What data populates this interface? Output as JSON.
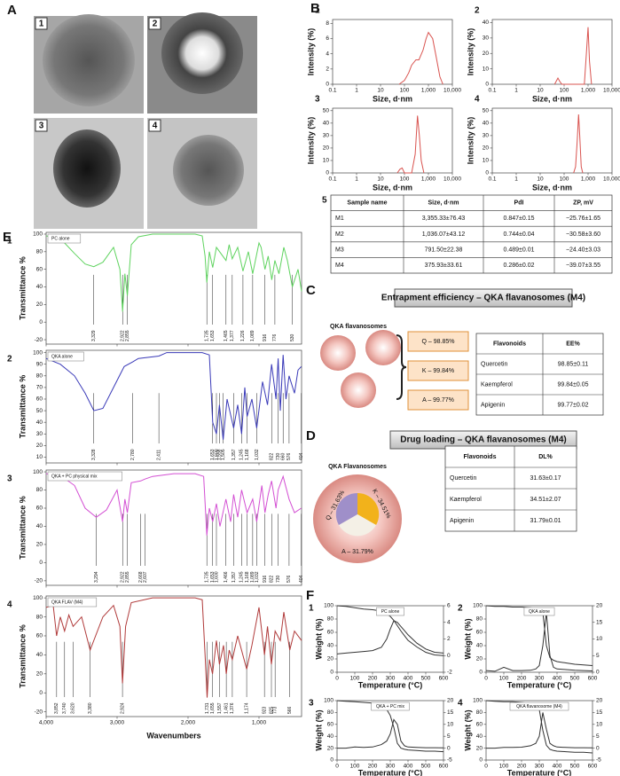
{
  "panels": [
    "A",
    "B",
    "C",
    "D",
    "E",
    "F"
  ],
  "tem": {
    "labels": [
      "1",
      "2",
      "3",
      "4"
    ]
  },
  "dls": {
    "x_label": "Size, d·nm",
    "y_label": "Intensity (%)",
    "color": "#d9534f",
    "log": true,
    "xlim": [
      0.1,
      10000
    ],
    "xticks": [
      0.1,
      1,
      10,
      100,
      {
        "value": 1000,
        "label": "1,000"
      },
      {
        "value": 10000,
        "label": "10,000"
      }
    ],
    "charts": [
      {
        "number": "1",
        "ylim": [
          0,
          8.5
        ],
        "yticks": [
          0,
          2,
          4,
          6,
          8
        ],
        "x": [
          60,
          100,
          150,
          200,
          300,
          400,
          600,
          800,
          1000,
          1500,
          2000,
          3000,
          4000
        ],
        "values": [
          0,
          0.5,
          1.5,
          2.5,
          3.2,
          3.2,
          4.5,
          6,
          6.8,
          6,
          4,
          1,
          0
        ]
      },
      {
        "number": "2",
        "ylim": [
          0,
          42
        ],
        "yticks": [
          0,
          10,
          20,
          30,
          40
        ],
        "x": [
          40,
          55,
          65,
          80,
          700,
          850,
          1000,
          1150,
          1400
        ],
        "values": [
          0,
          4,
          2,
          0,
          0,
          20,
          37,
          15,
          0
        ]
      },
      {
        "number": "3",
        "ylim": [
          0,
          52
        ],
        "yticks": [
          0,
          10,
          20,
          30,
          40,
          50
        ],
        "x": [
          50,
          65,
          80,
          100,
          200,
          280,
          350,
          420,
          500,
          650
        ],
        "values": [
          0,
          3,
          4,
          0,
          0,
          15,
          46,
          30,
          10,
          0
        ]
      },
      {
        "number": "4",
        "ylim": [
          0,
          52
        ],
        "yticks": [
          0,
          10,
          20,
          30,
          40,
          50
        ],
        "x": [
          250,
          300,
          350,
          400,
          450,
          520,
          600
        ],
        "values": [
          0,
          5,
          25,
          47,
          30,
          5,
          0
        ]
      }
    ]
  },
  "size_table": {
    "number": "5",
    "header": [
      "Sample name",
      "Size, d·nm",
      "PdI",
      "ZP, mV"
    ],
    "rows": [
      [
        "M1",
        "3,355.33±76.43",
        "0.847±0.15",
        "−25.76±1.65"
      ],
      [
        "M2",
        "1,036.07±43.12",
        "0.744±0.04",
        "−30.58±3.60"
      ],
      [
        "M3",
        "791.50±22.38",
        "0.489±0.01",
        "−24.40±3.03"
      ],
      [
        "M4",
        "375.93±33.61",
        "0.286±0.02",
        "−39.07±3.55"
      ]
    ]
  },
  "ftir": {
    "y_label": "Transmittance %",
    "x_label": "Wavenumbers",
    "log": false,
    "xlim": [
      4000,
      400
    ],
    "xticks": [
      {
        "value": 4000,
        "label": "4,000"
      },
      {
        "value": 3000,
        "label": "3,000"
      },
      {
        "value": 2000,
        "label": "2,000"
      },
      {
        "value": 1000,
        "label": "1,000"
      }
    ],
    "charts": [
      {
        "number": "1",
        "name": "PC alone",
        "color": "#5fd35f",
        "ylim": [
          -25,
          102
        ],
        "yticks": [
          -20,
          0,
          20,
          40,
          60,
          80,
          100
        ],
        "x": [
          4000,
          3800,
          3600,
          3450,
          3329,
          3200,
          3050,
          2960,
          2922,
          2890,
          2855,
          2800,
          2700,
          2500,
          2200,
          1900,
          1800,
          1760,
          1735,
          1700,
          1653,
          1600,
          1465,
          1420,
          1377,
          1300,
          1226,
          1150,
          1089,
          1000,
          970,
          916,
          870,
          820,
          776,
          719,
          650,
          600,
          530,
          450,
          400
        ],
        "values": [
          98,
          95,
          78,
          66,
          63,
          68,
          85,
          60,
          12,
          55,
          30,
          88,
          97,
          100,
          100,
          100,
          98,
          75,
          45,
          80,
          62,
          85,
          70,
          88,
          72,
          85,
          58,
          80,
          55,
          90,
          85,
          60,
          75,
          48,
          70,
          55,
          85,
          70,
          40,
          60,
          35
        ],
        "peaks": [
          {
            "value": 3329,
            "label": "3,329"
          },
          {
            "value": 2922,
            "label": "2,922"
          },
          {
            "value": 2855,
            "label": "2,855"
          },
          {
            "value": 1735,
            "label": "1,735"
          },
          {
            "value": 1653,
            "label": "1,653"
          },
          {
            "value": 1465,
            "label": "1,465"
          },
          {
            "value": 1377,
            "label": "1,377"
          },
          {
            "value": 1226,
            "label": "1,226"
          },
          {
            "value": 1089,
            "label": "1,089"
          },
          916,
          776,
          530
        ]
      },
      {
        "number": "2",
        "name": "QKA alone",
        "color": "#3a3ab8",
        "ylim": [
          5,
          102
        ],
        "yticks": [
          10,
          20,
          30,
          40,
          50,
          60,
          70,
          80,
          90,
          100
        ],
        "x": [
          4000,
          3800,
          3600,
          3450,
          3328,
          3200,
          3050,
          2900,
          2780,
          2700,
          2411,
          2300,
          2000,
          1800,
          1700,
          1653,
          1600,
          1558,
          1505,
          1450,
          1357,
          1300,
          1245,
          1200,
          1168,
          1100,
          1032,
          950,
          880,
          822,
          760,
          730,
          700,
          660,
          620,
          576,
          500,
          450,
          404
        ],
        "values": [
          95,
          90,
          80,
          65,
          50,
          52,
          70,
          88,
          92,
          95,
          97,
          100,
          100,
          100,
          98,
          40,
          30,
          55,
          25,
          60,
          35,
          55,
          30,
          70,
          45,
          60,
          35,
          75,
          55,
          90,
          60,
          95,
          50,
          98,
          60,
          80,
          65,
          85,
          88
        ],
        "peaks": [
          {
            "value": 3328,
            "label": "3,328"
          },
          {
            "value": 2780,
            "label": "2,780"
          },
          {
            "value": 2411,
            "label": "2,411"
          },
          {
            "value": 1653,
            "label": "1,653"
          },
          {
            "value": 1600,
            "label": "1,600"
          },
          {
            "value": 1558,
            "label": "1,558"
          },
          {
            "value": 1505,
            "label": "1,505"
          },
          {
            "value": 1357,
            "label": "1,357"
          },
          {
            "value": 1245,
            "label": "1,245"
          },
          {
            "value": 1168,
            "label": "1,168"
          },
          {
            "value": 1032,
            "label": "1,032"
          },
          822,
          730,
          660,
          576,
          404
        ]
      },
      {
        "number": "3",
        "name": "QKA + PC physical mix",
        "color": "#d34fd3",
        "ylim": [
          -25,
          102
        ],
        "yticks": [
          -20,
          0,
          20,
          40,
          60,
          80,
          100
        ],
        "x": [
          4000,
          3800,
          3600,
          3450,
          3294,
          3150,
          3000,
          2922,
          2890,
          2855,
          2800,
          2668,
          2607,
          2500,
          2200,
          1900,
          1780,
          1735,
          1700,
          1653,
          1600,
          1550,
          1466,
          1400,
          1357,
          1300,
          1245,
          1168,
          1089,
          1032,
          960,
          916,
          870,
          822,
          760,
          730,
          660,
          576,
          500,
          404
        ],
        "values": [
          98,
          96,
          85,
          60,
          50,
          58,
          80,
          45,
          70,
          55,
          88,
          90,
          92,
          95,
          98,
          98,
          95,
          30,
          60,
          45,
          65,
          40,
          70,
          45,
          75,
          50,
          80,
          55,
          70,
          45,
          85,
          55,
          75,
          90,
          60,
          80,
          95,
          70,
          55,
          60
        ],
        "peaks": [
          {
            "value": 3294,
            "label": "3,294"
          },
          {
            "value": 2922,
            "label": "2,922"
          },
          {
            "value": 2855,
            "label": "2,855"
          },
          {
            "value": 2668,
            "label": "2,668"
          },
          {
            "value": 2607,
            "label": "2,607"
          },
          {
            "value": 1735,
            "label": "1,735"
          },
          {
            "value": 1653,
            "label": "1,653"
          },
          {
            "value": 1600,
            "label": "1,600"
          },
          {
            "value": 1466,
            "label": "1,466"
          },
          {
            "value": 1357,
            "label": "1,357"
          },
          {
            "value": 1245,
            "label": "1,245"
          },
          {
            "value": 1168,
            "label": "1,168"
          },
          {
            "value": 1089,
            "label": "1,089"
          },
          {
            "value": 1032,
            "label": "1,032"
          },
          916,
          822,
          730,
          576,
          404
        ]
      },
      {
        "number": "4",
        "name": "QKA FLAV (M4)",
        "color": "#b03a3a",
        "ylim": [
          -25,
          102
        ],
        "yticks": [
          -20,
          0,
          20,
          40,
          60,
          80,
          100
        ],
        "x": [
          4000,
          3900,
          3852,
          3800,
          3740,
          3680,
          3620,
          3500,
          3380,
          3200,
          3050,
          2960,
          2924,
          2880,
          2800,
          2500,
          2100,
          1900,
          1800,
          1760,
          1731,
          1700,
          1655,
          1600,
          1557,
          1500,
          1461,
          1420,
          1376,
          1300,
          1174,
          1100,
          1000,
          923,
          880,
          825,
          773,
          700,
          650,
          566,
          500,
          400
        ],
        "values": [
          90,
          92,
          60,
          80,
          65,
          82,
          70,
          80,
          45,
          80,
          92,
          70,
          10,
          70,
          95,
          100,
          100,
          100,
          98,
          40,
          -5,
          35,
          20,
          55,
          30,
          50,
          20,
          45,
          35,
          60,
          25,
          50,
          90,
          40,
          70,
          30,
          65,
          55,
          85,
          45,
          65,
          55
        ],
        "peaks": [
          {
            "value": 3852,
            "label": "3,852"
          },
          {
            "value": 3740,
            "label": "3,740"
          },
          {
            "value": 3620,
            "label": "3,620"
          },
          {
            "value": 3380,
            "label": "3,380"
          },
          {
            "value": 2924,
            "label": "2,924"
          },
          {
            "value": 1731,
            "label": "1,731"
          },
          {
            "value": 1655,
            "label": "1,655"
          },
          {
            "value": 1557,
            "label": "1,557"
          },
          {
            "value": 1461,
            "label": "1,461"
          },
          {
            "value": 1376,
            "label": "1,376"
          },
          {
            "value": 1174,
            "label": "1,174"
          },
          923,
          825,
          773,
          566
        ]
      }
    ]
  },
  "entrapment": {
    "title": "Entrapment efficiency – QKA flavanosomes (M4)",
    "label": "QKA flavanosomes",
    "boxes": [
      "Q – 98.85%",
      "K – 99.84%",
      "A – 99.77%"
    ],
    "table": {
      "header": [
        "Flavonoids",
        "EE%"
      ],
      "rows": [
        [
          "Quercetin",
          "98.85±0.11"
        ],
        [
          "Kaempferol",
          "99.84±0.05"
        ],
        [
          "Apigenin",
          "99.77±0.02"
        ]
      ]
    }
  },
  "loading": {
    "title": "Drug loading – QKA flavanosomes (M4)",
    "label": "QKA Flavanosomes",
    "wedges": [
      "Q – 31.63%",
      "K – 34.51%",
      "A – 31.79%"
    ],
    "table": {
      "header": [
        "Flavonoids",
        "DL%"
      ],
      "rows": [
        [
          "Quercetin",
          "31.63±0.17"
        ],
        [
          "Kaempferol",
          "34.51±2.07"
        ],
        [
          "Apigenin",
          "31.79±0.01"
        ]
      ]
    }
  },
  "tga": {
    "x_label": "Temperature (°C)",
    "y_label": "Weight (%)",
    "color": "#333333",
    "log": false,
    "xlim": [
      0,
      600
    ],
    "xticks": [
      0,
      100,
      200,
      300,
      400,
      500,
      600
    ],
    "x": [
      0,
      50,
      100,
      150,
      200,
      250,
      280,
      300,
      320,
      340,
      360,
      380,
      400,
      450,
      500,
      550,
      600
    ],
    "charts": [
      {
        "number": "1",
        "name": "PC alone",
        "ylim": [
          0,
          100
        ],
        "yticks": [
          0,
          20,
          40,
          60,
          80,
          100
        ],
        "y2lim": [
          -2,
          6
        ],
        "y2ticks": [
          -2,
          0,
          2,
          4,
          6
        ],
        "weight": [
          100,
          99,
          97,
          95,
          94,
          92,
          88,
          84,
          78,
          70,
          62,
          55,
          48,
          38,
          30,
          26,
          25
        ],
        "derivative": [
          0.2,
          0.3,
          0.4,
          0.5,
          0.6,
          1,
          2,
          3.2,
          4.2,
          4,
          3.5,
          3,
          2.5,
          1.5,
          0.8,
          0.4,
          0.3
        ]
      },
      {
        "number": "2",
        "name": "QKA alone",
        "ylim": [
          0,
          100
        ],
        "yticks": [
          0,
          20,
          40,
          60,
          80,
          100
        ],
        "y2lim": [
          0,
          20
        ],
        "y2ticks": [
          0,
          5,
          10,
          15,
          20
        ],
        "weight": [
          100,
          99,
          99,
          98,
          98,
          97,
          96,
          95,
          90,
          40,
          22,
          18,
          16,
          14,
          12,
          11,
          10
        ],
        "derivative": [
          0.5,
          0.3,
          1.5,
          0.5,
          0.5,
          0.6,
          1,
          2,
          8,
          18,
          5,
          1.5,
          1,
          0.8,
          0.6,
          0.5,
          0.4
        ]
      },
      {
        "number": "3",
        "name": "QKA + PC mix",
        "ylim": [
          0,
          100
        ],
        "yticks": [
          0,
          20,
          40,
          60,
          80,
          100
        ],
        "y2lim": [
          -5,
          20
        ],
        "y2ticks": [
          -5,
          0,
          5,
          10,
          15,
          20
        ],
        "weight": [
          100,
          99,
          98,
          97,
          96,
          92,
          85,
          75,
          55,
          28,
          20,
          18,
          17,
          16,
          15,
          15,
          14
        ],
        "derivative": [
          0,
          0,
          0.5,
          0.3,
          0.5,
          1.5,
          3,
          6,
          12,
          10,
          3,
          1,
          0.5,
          0.3,
          0.2,
          0.2,
          0.1
        ]
      },
      {
        "number": "4",
        "name": "QKA flavanosome (M4)",
        "ylim": [
          0,
          100
        ],
        "yticks": [
          0,
          20,
          40,
          60,
          80,
          100
        ],
        "y2lim": [
          -5,
          20
        ],
        "y2ticks": [
          -5,
          0,
          5,
          10,
          15,
          20
        ],
        "weight": [
          100,
          99,
          98,
          98,
          97,
          95,
          92,
          85,
          50,
          25,
          18,
          16,
          15,
          14,
          13,
          13,
          12
        ],
        "derivative": [
          0,
          0,
          0.3,
          0.3,
          0.4,
          1,
          2,
          5,
          15,
          8,
          2,
          1,
          0.5,
          0.3,
          0.2,
          0.2,
          0.1
        ]
      }
    ]
  }
}
